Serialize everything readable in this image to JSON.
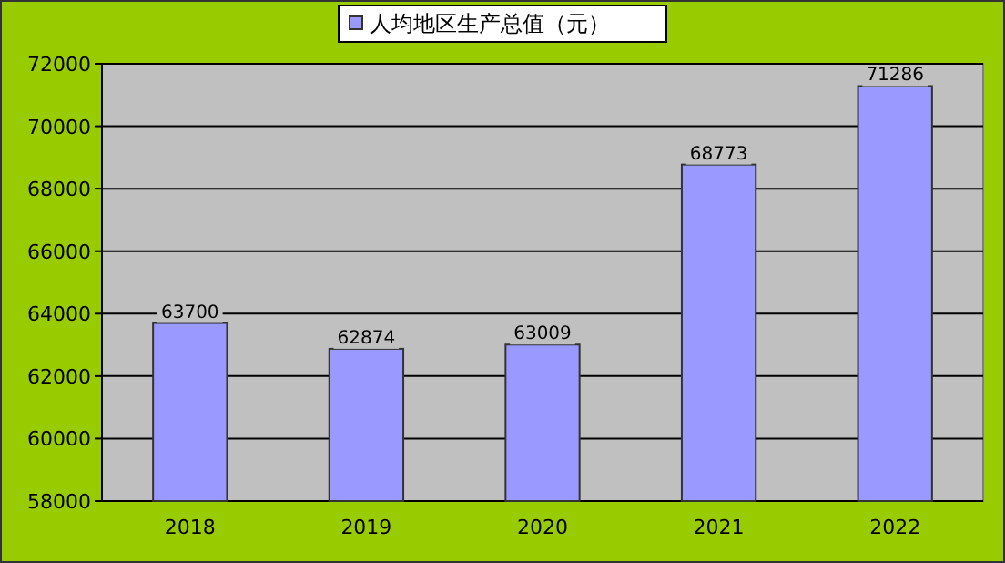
{
  "chart_data": {
    "type": "bar",
    "categories": [
      "2018",
      "2019",
      "2020",
      "2021",
      "2022"
    ],
    "series": [
      {
        "name": "人均地区生产总值（元）",
        "color": "#9999ff",
        "values": [
          63700,
          62874,
          63009,
          68773,
          71286
        ]
      }
    ],
    "ylim": [
      58000,
      72000
    ],
    "yticks": [
      58000,
      60000,
      62000,
      64000,
      66000,
      68000,
      70000,
      72000
    ],
    "grid": "y",
    "legend": "top",
    "data_labels": true
  }
}
